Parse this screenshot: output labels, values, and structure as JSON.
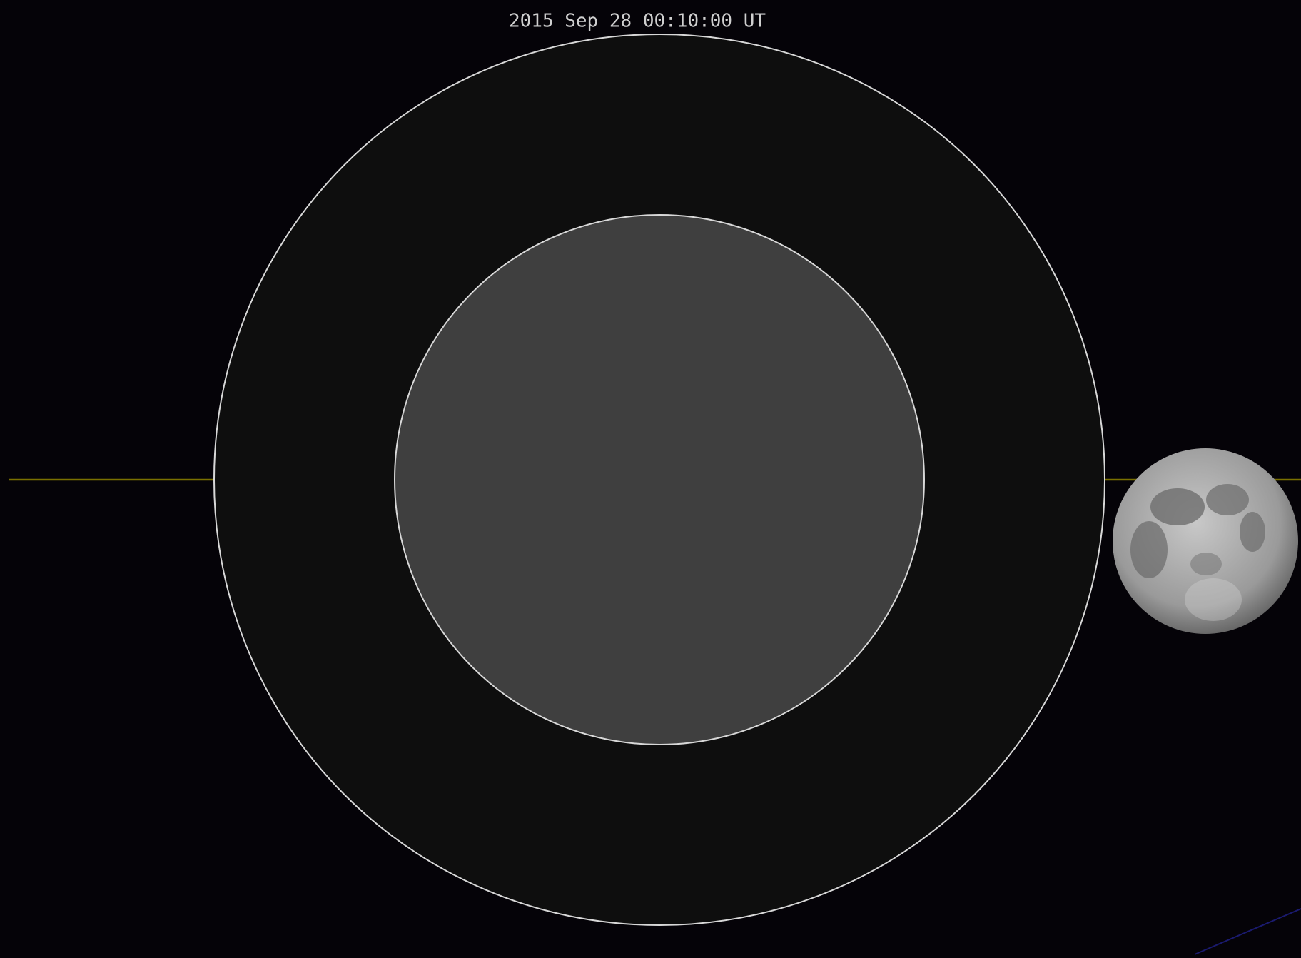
{
  "title": "2015 Sep 28 00:10:00 UT"
}
